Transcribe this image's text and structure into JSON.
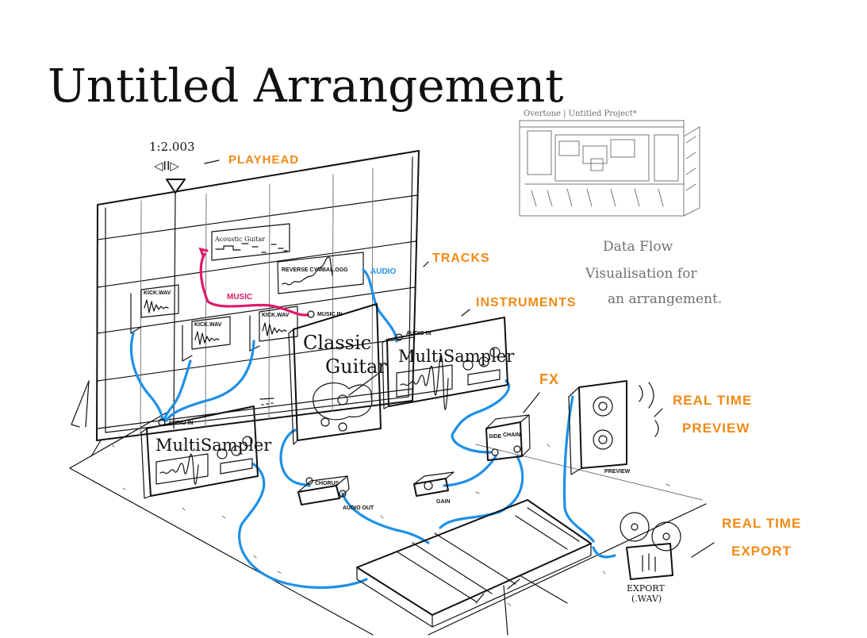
{
  "title": "Untitled Arrangement",
  "playhead": {
    "time": "1:2.003",
    "controls": "◁II▷",
    "label": "PLAYHEAD"
  },
  "labels": {
    "tracks": "TRACKS",
    "instruments": "INSTRUMENTS",
    "fx": "FX",
    "real_time_preview": [
      "REAL TIME",
      "PREVIEW"
    ],
    "real_time_export": [
      "REAL TIME",
      "EXPORT"
    ]
  },
  "track_clips": {
    "acoustic_guitar": "Acoustic Guitar",
    "reverse_cymbal": "REVERSE CYMBAL.OGG",
    "kick_1": "KICK.WAV",
    "kick_2": "KICK.WAV",
    "kick_3": "KICK.WAV"
  },
  "cable_labels": {
    "music": "MUSIC",
    "audio": "AUDIO"
  },
  "instruments": {
    "multisampler_top": "MultiSampler",
    "multisampler_bottom": "MultiSampler",
    "classic_guitar": [
      "Classic",
      "Guitar"
    ],
    "audio_in": "AUDIO IN",
    "music_in": "MUSIC IN"
  },
  "devices": {
    "sidechain": [
      "SIDE",
      "CHAIN"
    ],
    "gain": "GAIN",
    "chorus": "CHORUS",
    "audio_out": "AUDIO OUT",
    "preview": "PREVIEW",
    "export": [
      "EXPORT",
      "(.WAV)"
    ]
  },
  "thumbnail": {
    "title": "Overtone | Untitled Project*"
  },
  "note": [
    "Data Flow",
    "Visualisation for",
    "an arrangement."
  ],
  "colors": {
    "accent": "#f08a16",
    "audio_cable": "#1e90e6",
    "music_cable": "#e0196b",
    "ink": "#111111"
  }
}
